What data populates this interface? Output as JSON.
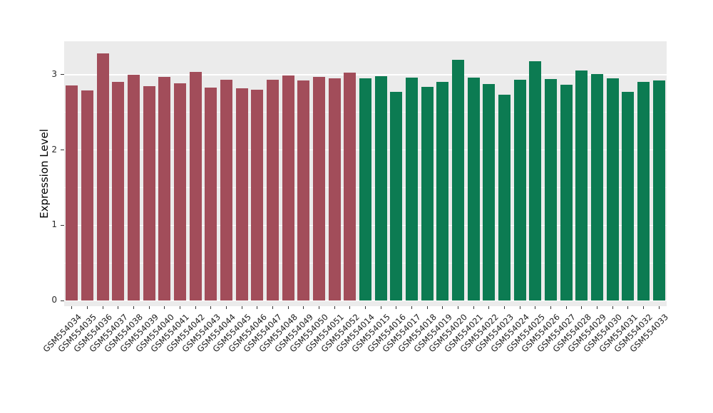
{
  "chart_data": {
    "type": "bar",
    "title": "",
    "xlabel": "",
    "ylabel": "Expression Level",
    "ylim": [
      0,
      3.45
    ],
    "yticks": [
      0,
      1,
      2,
      3
    ],
    "yticks_minor": [
      0.5,
      1.5,
      2.5
    ],
    "grid": "on",
    "legend": "none",
    "panel_background": "#EBEBEB",
    "group_colors": {
      "A": "#A24D5A",
      "B": "#0C7B52"
    },
    "bars": [
      {
        "label": "GSM554034",
        "value": 2.86,
        "group": "A"
      },
      {
        "label": "GSM554035",
        "value": 2.79,
        "group": "A"
      },
      {
        "label": "GSM554036",
        "value": 3.28,
        "group": "A"
      },
      {
        "label": "GSM554037",
        "value": 2.9,
        "group": "A"
      },
      {
        "label": "GSM554038",
        "value": 3.0,
        "group": "A"
      },
      {
        "label": "GSM554039",
        "value": 2.85,
        "group": "A"
      },
      {
        "label": "GSM554040",
        "value": 2.97,
        "group": "A"
      },
      {
        "label": "GSM554041",
        "value": 2.89,
        "group": "A"
      },
      {
        "label": "GSM554042",
        "value": 3.04,
        "group": "A"
      },
      {
        "label": "GSM554043",
        "value": 2.83,
        "group": "A"
      },
      {
        "label": "GSM554044",
        "value": 2.93,
        "group": "A"
      },
      {
        "label": "GSM554045",
        "value": 2.82,
        "group": "A"
      },
      {
        "label": "GSM554046",
        "value": 2.8,
        "group": "A"
      },
      {
        "label": "GSM554047",
        "value": 2.93,
        "group": "A"
      },
      {
        "label": "GSM554048",
        "value": 2.99,
        "group": "A"
      },
      {
        "label": "GSM554049",
        "value": 2.92,
        "group": "A"
      },
      {
        "label": "GSM554050",
        "value": 2.97,
        "group": "A"
      },
      {
        "label": "GSM554051",
        "value": 2.95,
        "group": "A"
      },
      {
        "label": "GSM554052",
        "value": 3.03,
        "group": "A"
      },
      {
        "label": "GSM554014",
        "value": 2.95,
        "group": "B"
      },
      {
        "label": "GSM554015",
        "value": 2.98,
        "group": "B"
      },
      {
        "label": "GSM554016",
        "value": 2.77,
        "group": "B"
      },
      {
        "label": "GSM554017",
        "value": 2.96,
        "group": "B"
      },
      {
        "label": "GSM554018",
        "value": 2.84,
        "group": "B"
      },
      {
        "label": "GSM554019",
        "value": 2.9,
        "group": "B"
      },
      {
        "label": "GSM554020",
        "value": 3.2,
        "group": "B"
      },
      {
        "label": "GSM554021",
        "value": 2.96,
        "group": "B"
      },
      {
        "label": "GSM554022",
        "value": 2.88,
        "group": "B"
      },
      {
        "label": "GSM554023",
        "value": 2.73,
        "group": "B"
      },
      {
        "label": "GSM554024",
        "value": 2.93,
        "group": "B"
      },
      {
        "label": "GSM554025",
        "value": 3.18,
        "group": "B"
      },
      {
        "label": "GSM554026",
        "value": 2.94,
        "group": "B"
      },
      {
        "label": "GSM554027",
        "value": 2.87,
        "group": "B"
      },
      {
        "label": "GSM554028",
        "value": 3.06,
        "group": "B"
      },
      {
        "label": "GSM554029",
        "value": 3.01,
        "group": "B"
      },
      {
        "label": "GSM554030",
        "value": 2.95,
        "group": "B"
      },
      {
        "label": "GSM554031",
        "value": 2.77,
        "group": "B"
      },
      {
        "label": "GSM554032",
        "value": 2.9,
        "group": "B"
      },
      {
        "label": "GSM554033",
        "value": 2.92,
        "group": "B"
      }
    ]
  }
}
